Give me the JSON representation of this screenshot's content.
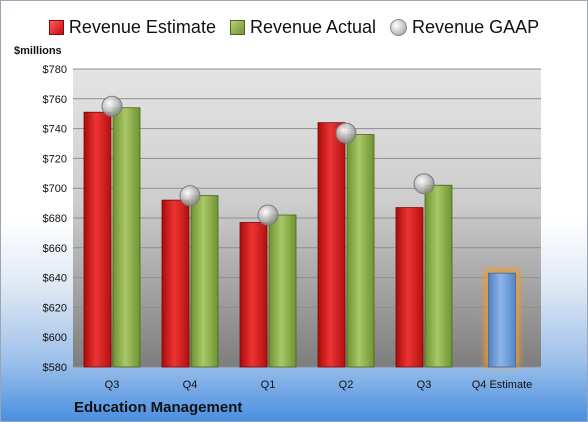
{
  "chart_data": {
    "type": "bar",
    "title": "",
    "ylabel": "$millions",
    "xlabel": "",
    "company": "Education Management",
    "categories": [
      "Q3",
      "Q4",
      "Q1",
      "Q2",
      "Q3",
      "Q4 Estimate"
    ],
    "ylim": [
      580,
      780
    ],
    "yticks": [
      "$580",
      "$600",
      "$620",
      "$640",
      "$660",
      "$680",
      "$700",
      "$720",
      "$740",
      "$760",
      "$780"
    ],
    "grid": true,
    "legend_position": "top",
    "series": [
      {
        "name": "Revenue Estimate",
        "type": "bar",
        "color": "#d61a1a",
        "values": [
          751,
          692,
          677,
          744,
          687,
          null
        ]
      },
      {
        "name": "Revenue Actual",
        "type": "bar",
        "color": "#8aad45",
        "values": [
          754,
          695,
          682,
          736,
          702,
          null
        ]
      },
      {
        "name": "Revenue GAAP",
        "type": "marker",
        "color": "#bdbdbd",
        "values": [
          755,
          695,
          682,
          737,
          703,
          null
        ]
      },
      {
        "name": "",
        "type": "bar",
        "color": "#6c9bd6",
        "highlight": "#f39a2a",
        "values": [
          null,
          null,
          null,
          null,
          null,
          643
        ]
      }
    ]
  }
}
